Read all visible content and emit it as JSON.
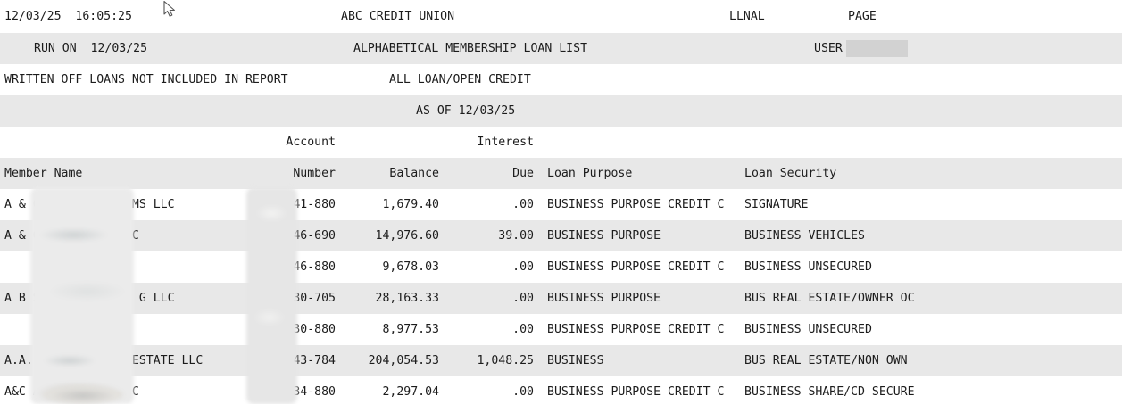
{
  "meta": {
    "band_gray": "#e8e8e8",
    "text_color": "#1c1c1c",
    "redaction_color": "#d2d2d2"
  },
  "header": {
    "datetime": "12/03/25  16:05:25",
    "company": "ABC CREDIT UNION",
    "report_code": "LLNAL",
    "page_label": "PAGE",
    "run_on": "RUN ON  12/03/25",
    "report_name": "ALPHABETICAL MEMBERSHIP LOAN LIST",
    "user_label": "USER",
    "note": "WRITTEN OFF LOANS NOT INCLUDED IN REPORT",
    "filter": "ALL LOAN/OPEN CREDIT",
    "as_of": "AS OF 12/03/25"
  },
  "columns": {
    "account_line1": "Account",
    "interest_line1": "Interest",
    "member_name": "Member Name",
    "number": "Number",
    "balance": "Balance",
    "due": "Due",
    "loan_purpose": "Loan Purpose",
    "loan_security": "Loan Security"
  },
  "rows": [
    {
      "name": "A & C             MS LLC",
      "account": "41-880",
      "balance": "1,679.40",
      "due": ".00",
      "purpose": "BUSINESS PURPOSE CREDIT C",
      "security": "SIGNATURE"
    },
    {
      "name": "A & C             C",
      "account": "46-690",
      "balance": "14,976.60",
      "due": "39.00",
      "purpose": "BUSINESS PURPOSE",
      "security": "BUSINESS VEHICLES"
    },
    {
      "name": "",
      "account": "46-880",
      "balance": "9,678.03",
      "due": ".00",
      "purpose": "BUSINESS PURPOSE CREDIT C",
      "security": "BUSINESS UNSECURED"
    },
    {
      "name": "A B S              G LLC",
      "account": "30-705",
      "balance": "28,163.33",
      "due": ".00",
      "purpose": "BUSINESS PURPOSE",
      "security": "BUS REAL ESTATE/OWNER OC"
    },
    {
      "name": "",
      "account": "30-880",
      "balance": "8,977.53",
      "due": ".00",
      "purpose": "BUSINESS PURPOSE CREDIT C",
      "security": "BUSINESS UNSECURED"
    },
    {
      "name": "A.A.            L ESTATE LLC",
      "account": "43-784",
      "balance": "204,054.53",
      "due": "1,048.25",
      "purpose": "BUSINESS",
      "security": "BUS REAL ESTATE/NON OWN"
    },
    {
      "name": "A&C A             C",
      "account": "34-880",
      "balance": "2,297.04",
      "due": ".00",
      "purpose": "BUSINESS PURPOSE CREDIT C",
      "security": "BUSINESS SHARE/CD SECURE"
    }
  ]
}
